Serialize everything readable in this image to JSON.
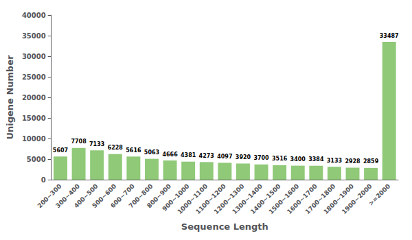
{
  "chart_data": {
    "type": "bar",
    "categories": [
      "200~300",
      "300~400",
      "400~500",
      "500~600",
      "600~700",
      "700~800",
      "800~900",
      "900~1000",
      "1000~1100",
      "1100~1200",
      "1200~1300",
      "1300~1400",
      "1400~1500",
      "1500~1600",
      "1600~1700",
      "1700~1800",
      "1800~1900",
      "1900~2000",
      ">=2000"
    ],
    "values": [
      5607,
      7708,
      7133,
      6228,
      5616,
      5063,
      4666,
      4381,
      4273,
      4097,
      3920,
      3700,
      3516,
      3400,
      3384,
      3133,
      2928,
      2859,
      33487
    ],
    "color": "#90c978",
    "xlabel": "Sequence Length",
    "ylabel": "Unigene Number",
    "ylim": [
      0,
      40000
    ],
    "yticks": [
      0,
      5000,
      10000,
      15000,
      20000,
      25000,
      30000,
      35000,
      40000
    ],
    "data_labels": true,
    "grid": false
  }
}
